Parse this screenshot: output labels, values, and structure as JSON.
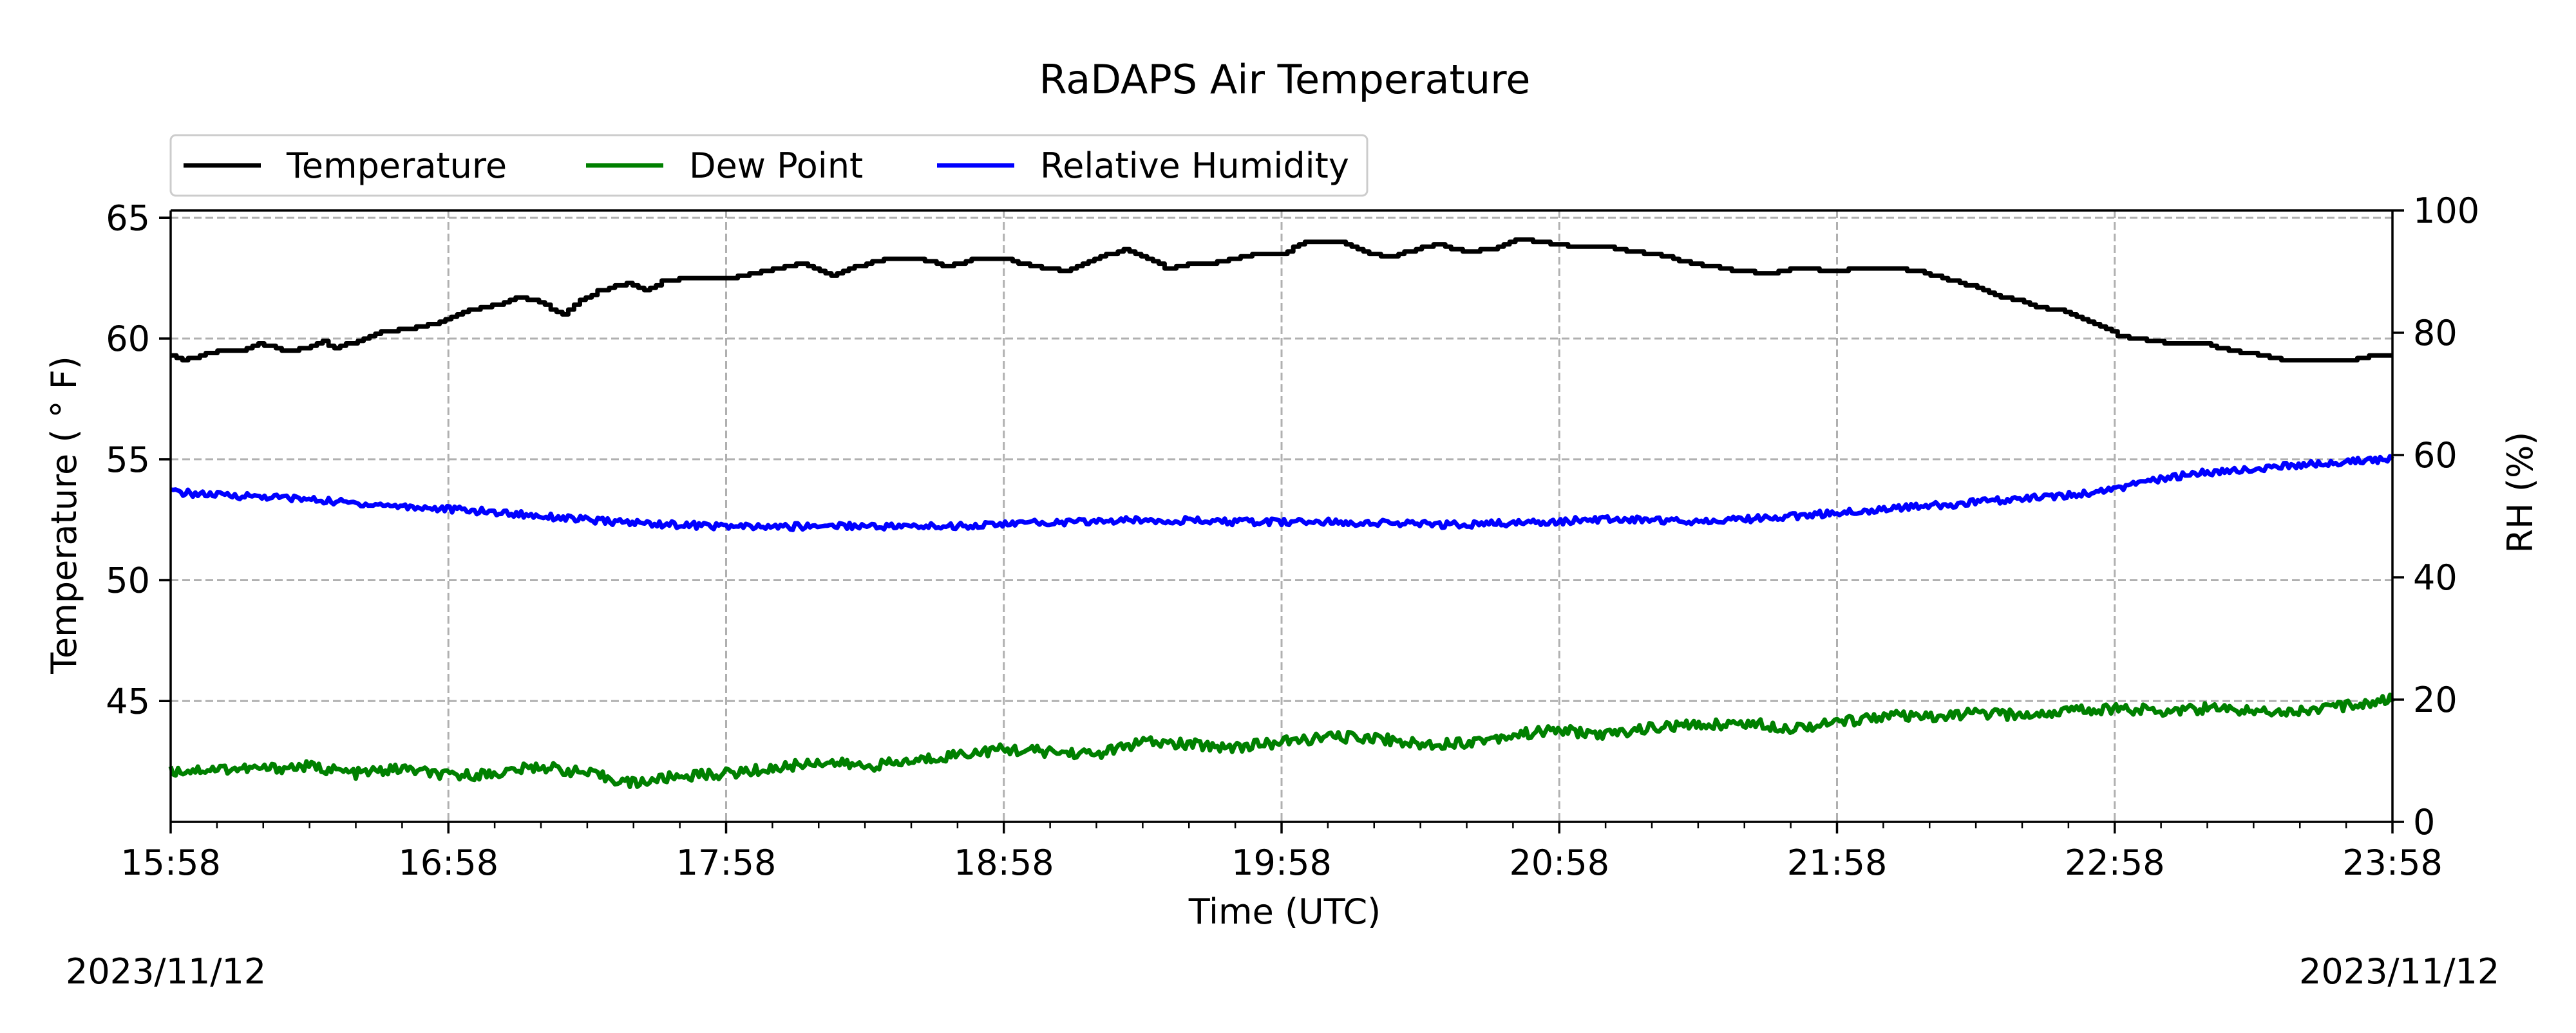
{
  "chart_data": {
    "type": "line",
    "title": "RaDAPS Air Temperature",
    "xlabel": "Time (UTC)",
    "ylabel_left": "Temperature ($^\\circ$F)",
    "ylabel_left_display": "Temperature ( ° F)",
    "ylabel_right": "RH (%)",
    "x_ticks": [
      "15:58",
      "16:58",
      "17:58",
      "18:58",
      "19:58",
      "20:58",
      "21:58",
      "22:58",
      "23:58"
    ],
    "x_range_hours": [
      0,
      8
    ],
    "y_left_range": [
      40,
      65.3
    ],
    "y_left_ticks": [
      45,
      50,
      55,
      60,
      65
    ],
    "y_right_range": [
      0,
      100
    ],
    "y_right_ticks": [
      0,
      20,
      40,
      60,
      80,
      100
    ],
    "grid": true,
    "legend_position": "top-left",
    "start_date": "2023/11/12",
    "end_date": "2023/11/12",
    "series": [
      {
        "name": "Temperature",
        "color": "#000000",
        "axis": "left",
        "step": true,
        "points": [
          [
            0,
            59.3
          ],
          [
            0.1,
            59.1
          ],
          [
            0.25,
            59.3
          ],
          [
            0.4,
            59.5
          ],
          [
            0.6,
            59.5
          ],
          [
            0.75,
            59.8
          ],
          [
            0.9,
            59.6
          ],
          [
            1.0,
            59.5
          ],
          [
            1.15,
            59.6
          ],
          [
            1.3,
            59.9
          ],
          [
            1.4,
            59.6
          ],
          [
            1.55,
            59.8
          ],
          [
            1.7,
            60.1
          ],
          [
            1.85,
            60.3
          ],
          [
            2.05,
            60.4
          ],
          [
            2.25,
            60.6
          ],
          [
            2.45,
            60.9
          ],
          [
            2.6,
            61.2
          ],
          [
            2.8,
            61.4
          ],
          [
            3.0,
            61.7
          ],
          [
            3.15,
            61.6
          ],
          [
            3.3,
            61.2
          ],
          [
            3.4,
            61.0
          ],
          [
            3.5,
            61.5
          ],
          [
            3.7,
            62.0
          ],
          [
            3.95,
            62.3
          ],
          [
            4.1,
            62.0
          ],
          [
            4.25,
            62.4
          ],
          [
            4.5,
            62.5
          ],
          [
            4.8,
            62.5
          ],
          [
            5.05,
            62.7
          ],
          [
            5.25,
            62.9
          ],
          [
            5.45,
            63.1
          ],
          [
            5.7,
            62.6
          ],
          [
            5.85,
            62.9
          ],
          [
            6.0,
            63.1
          ],
          [
            6.2,
            63.3
          ],
          [
            6.45,
            63.3
          ],
          [
            6.7,
            63.0
          ],
          [
            6.95,
            63.3
          ],
          [
            7.2,
            63.3
          ],
          [
            7.45,
            63.0
          ],
          [
            7.7,
            62.8
          ],
          [
            7.9,
            63.1
          ],
          [
            8.05,
            63.4
          ],
          [
            8.25,
            63.7
          ],
          [
            8.45,
            63.3
          ],
          [
            8.6,
            62.9
          ],
          [
            8.8,
            63.1
          ],
          [
            8.95,
            63.1
          ],
          [
            9.15,
            63.3
          ],
          [
            9.35,
            63.5
          ],
          [
            9.6,
            63.5
          ],
          [
            9.8,
            64.0
          ],
          [
            10.1,
            64.0
          ],
          [
            10.35,
            63.5
          ],
          [
            10.55,
            63.4
          ],
          [
            10.75,
            63.7
          ],
          [
            10.95,
            63.9
          ],
          [
            11.15,
            63.6
          ],
          [
            11.4,
            63.7
          ],
          [
            11.6,
            64.1
          ],
          [
            11.85,
            64.0
          ],
          [
            12.1,
            63.8
          ],
          [
            12.4,
            63.8
          ],
          [
            12.6,
            63.6
          ],
          [
            12.85,
            63.5
          ],
          [
            13.05,
            63.2
          ],
          [
            13.3,
            63.0
          ],
          [
            13.55,
            62.8
          ],
          [
            13.8,
            62.7
          ],
          [
            14.05,
            62.9
          ],
          [
            14.35,
            62.8
          ],
          [
            14.6,
            62.9
          ],
          [
            14.85,
            62.9
          ],
          [
            15.1,
            62.8
          ],
          [
            15.3,
            62.5
          ],
          [
            15.55,
            62.2
          ],
          [
            15.75,
            61.8
          ],
          [
            15.95,
            61.6
          ],
          [
            16.15,
            61.3
          ],
          [
            16.4,
            61.1
          ],
          [
            16.6,
            60.6
          ],
          [
            16.85,
            60.1
          ],
          [
            17.1,
            59.9
          ],
          [
            17.35,
            59.8
          ],
          [
            17.55,
            59.8
          ],
          [
            17.8,
            59.5
          ],
          [
            18.05,
            59.3
          ],
          [
            18.3,
            59.1
          ],
          [
            18.55,
            59.1
          ],
          [
            18.8,
            59.1
          ],
          [
            19.0,
            59.3
          ],
          [
            19.2,
            59.3
          ]
        ]
      },
      {
        "name": "Dew Point",
        "color": "#008000",
        "axis": "left",
        "step": false,
        "points": [
          [
            0,
            42.1
          ],
          [
            0.5,
            42.2
          ],
          [
            1,
            42.2
          ],
          [
            1.5,
            42.3
          ],
          [
            2,
            42.0
          ],
          [
            2.5,
            42.2
          ],
          [
            3,
            41.9
          ],
          [
            3.5,
            42.0
          ],
          [
            4,
            42.3
          ],
          [
            4.5,
            42.0
          ],
          [
            5,
            41.6
          ],
          [
            5.5,
            41.9
          ],
          [
            6,
            42.0
          ],
          [
            6.5,
            42.2
          ],
          [
            7,
            42.5
          ],
          [
            7.5,
            42.3
          ],
          [
            8,
            42.5
          ],
          [
            8.5,
            42.8
          ],
          [
            9,
            43.0
          ],
          [
            9.5,
            42.9
          ],
          [
            10,
            42.8
          ],
          [
            10.5,
            43.3
          ],
          [
            11,
            43.2
          ],
          [
            11.5,
            43.1
          ],
          [
            12,
            43.3
          ],
          [
            12.5,
            43.5
          ],
          [
            13,
            43.5
          ],
          [
            13.5,
            43.2
          ],
          [
            14,
            43.3
          ],
          [
            14.5,
            43.6
          ],
          [
            15,
            43.8
          ],
          [
            15.5,
            43.6
          ],
          [
            16,
            43.9
          ],
          [
            16.5,
            44.0
          ],
          [
            17,
            44.1
          ],
          [
            17.5,
            43.9
          ],
          [
            18,
            44.1
          ],
          [
            18.5,
            44.4
          ],
          [
            19,
            44.3
          ],
          [
            19.5,
            44.5
          ],
          [
            20,
            44.4
          ],
          [
            20.5,
            44.6
          ],
          [
            21,
            44.7
          ],
          [
            21.5,
            44.6
          ],
          [
            22,
            44.7
          ],
          [
            22.5,
            44.6
          ],
          [
            23,
            44.6
          ],
          [
            23.5,
            44.8
          ],
          [
            24,
            45.1
          ]
        ]
      },
      {
        "name": "Relative Humidity",
        "color": "#0000ff",
        "axis": "right",
        "step": false,
        "points": [
          [
            0,
            54.0
          ],
          [
            0.5,
            53.5
          ],
          [
            1,
            53.3
          ],
          [
            1.5,
            53.0
          ],
          [
            2,
            52.5
          ],
          [
            2.5,
            52.0
          ],
          [
            3,
            51.6
          ],
          [
            3.5,
            51.2
          ],
          [
            4,
            50.8
          ],
          [
            4.5,
            50.3
          ],
          [
            5,
            49.8
          ],
          [
            5.5,
            49.2
          ],
          [
            6,
            48.9
          ],
          [
            6.5,
            48.6
          ],
          [
            7,
            48.4
          ],
          [
            7.5,
            48.2
          ],
          [
            8,
            48.3
          ],
          [
            8.5,
            48.5
          ],
          [
            9,
            48.4
          ],
          [
            9.5,
            48.3
          ],
          [
            10,
            48.4
          ],
          [
            10.5,
            48.6
          ],
          [
            11,
            48.9
          ],
          [
            11.5,
            49.0
          ],
          [
            12,
            49.2
          ],
          [
            12.5,
            49.4
          ],
          [
            13,
            49.3
          ],
          [
            13.5,
            49.1
          ],
          [
            14,
            49.0
          ],
          [
            14.5,
            49.1
          ],
          [
            15,
            49.0
          ],
          [
            15.5,
            48.9
          ],
          [
            16,
            48.7
          ],
          [
            16.5,
            48.6
          ],
          [
            17,
            48.8
          ],
          [
            17.5,
            49.0
          ],
          [
            18,
            49.3
          ],
          [
            18.5,
            49.5
          ],
          [
            19,
            49.4
          ],
          [
            19.5,
            49.2
          ],
          [
            20,
            49.4
          ],
          [
            20.5,
            49.7
          ],
          [
            21,
            50.2
          ],
          [
            21.5,
            50.7
          ],
          [
            22,
            51.2
          ],
          [
            22.5,
            51.6
          ],
          [
            23,
            52.1
          ],
          [
            23.5,
            52.6
          ],
          [
            24,
            53.1
          ],
          [
            24.5,
            53.6
          ],
          [
            25,
            54.6
          ],
          [
            25.5,
            56.0
          ],
          [
            26,
            57.0
          ],
          [
            26.5,
            57.5
          ],
          [
            27,
            58.0
          ],
          [
            27.5,
            58.6
          ],
          [
            28,
            59.0
          ],
          [
            28.5,
            59.4
          ]
        ]
      }
    ]
  }
}
